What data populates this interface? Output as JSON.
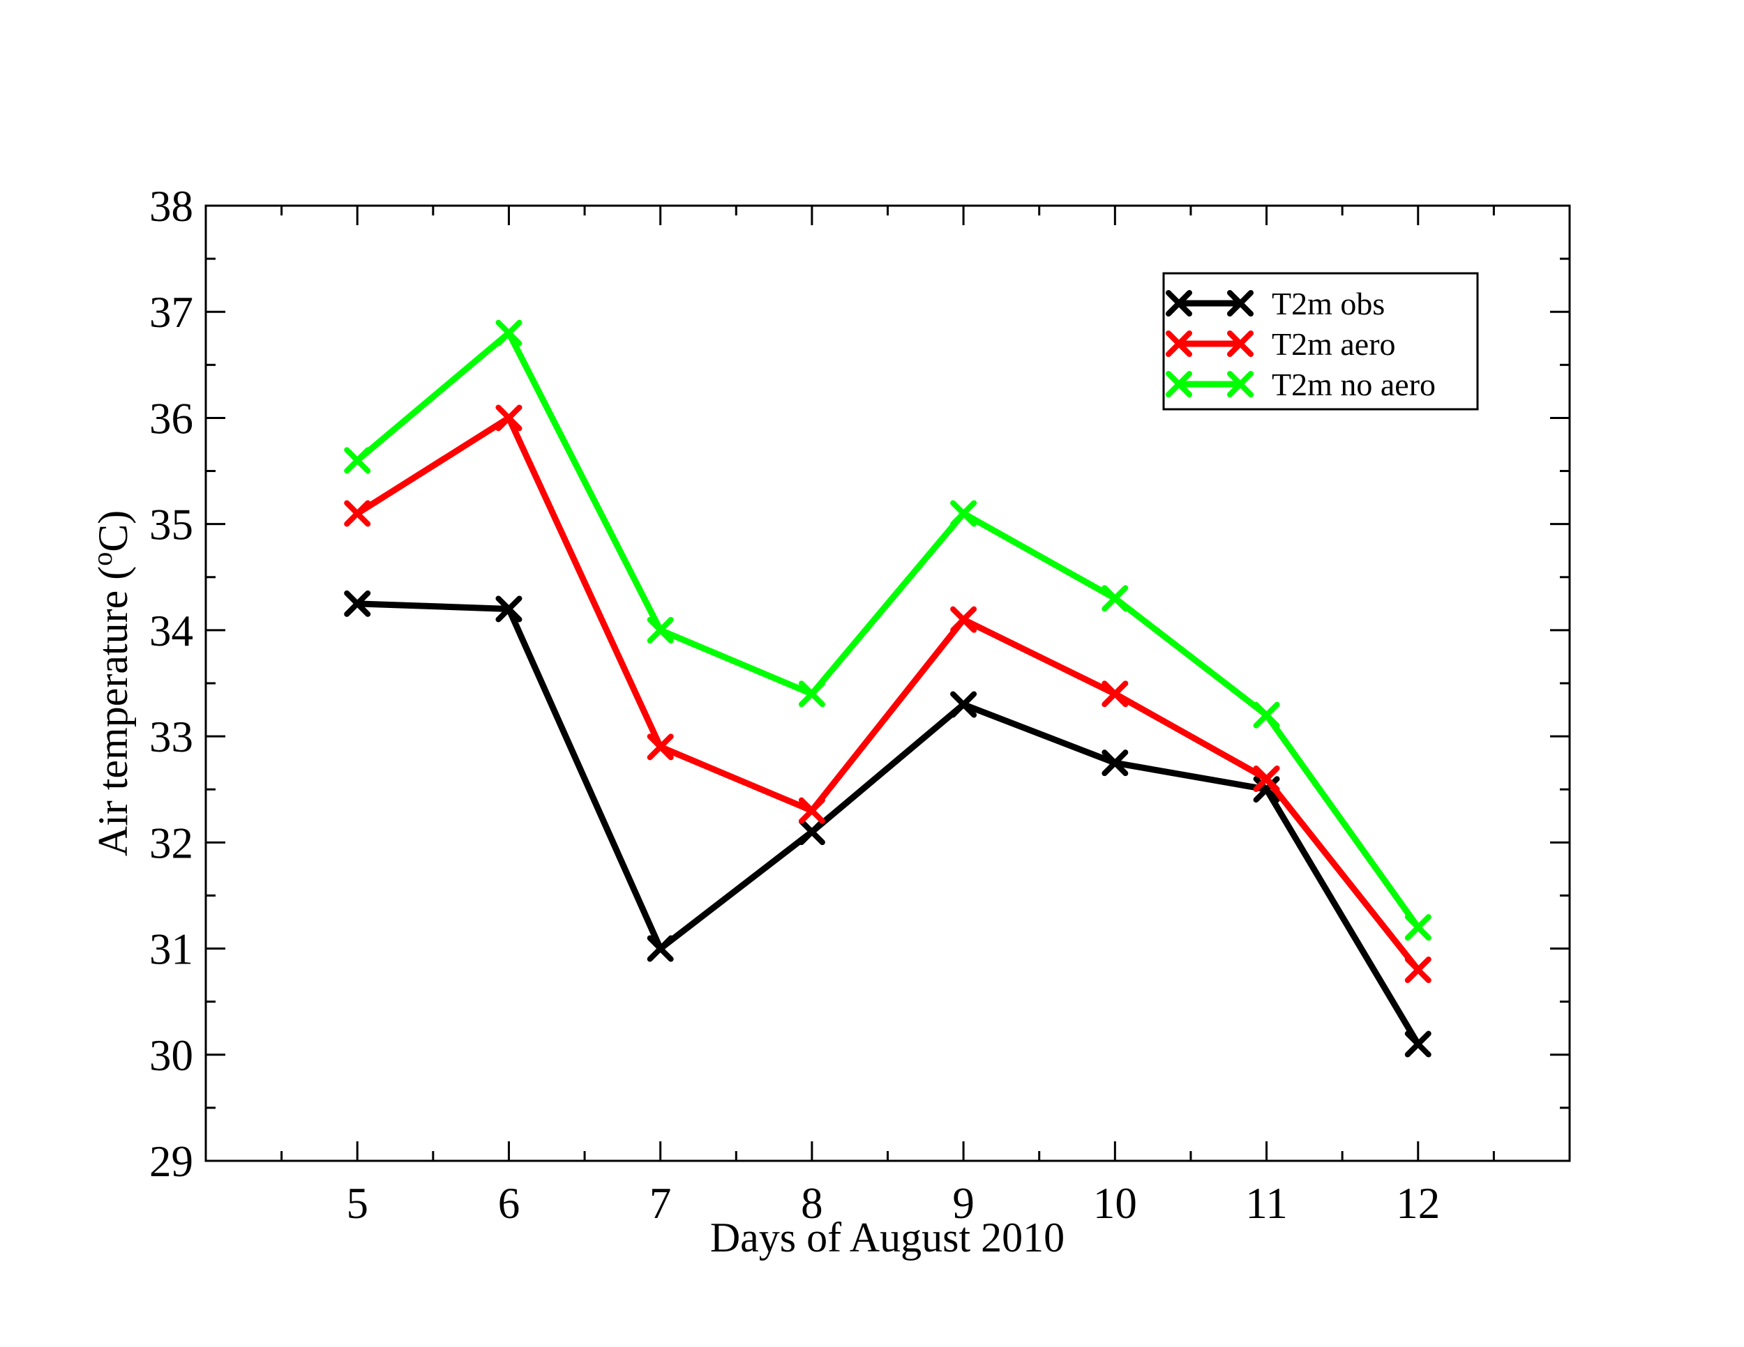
{
  "chart_data": {
    "type": "line",
    "title": "",
    "xlabel": "Days of August 2010",
    "ylabel": {
      "prefix": "Air temperature (",
      "superscript": "o",
      "suffix": "C)"
    },
    "x": [
      5,
      6,
      7,
      8,
      9,
      10,
      11,
      12
    ],
    "xlim": [
      4,
      13
    ],
    "ylim": [
      29,
      38
    ],
    "xticks": [
      5,
      6,
      7,
      8,
      9,
      10,
      11,
      12
    ],
    "yticks": [
      29,
      30,
      31,
      32,
      33,
      34,
      35,
      36,
      37,
      38
    ],
    "grid": false,
    "legend_position": "top-right",
    "series": [
      {
        "name": "T2m obs",
        "color": "#000000",
        "marker": "x",
        "values": [
          34.25,
          34.2,
          31.0,
          32.1,
          33.3,
          32.75,
          32.5,
          30.1
        ]
      },
      {
        "name": "T2m aero",
        "color": "#ff0000",
        "marker": "x",
        "values": [
          35.1,
          36.0,
          32.9,
          32.3,
          34.1,
          33.4,
          32.6,
          30.8
        ]
      },
      {
        "name": "T2m no aero",
        "color": "#00ff00",
        "marker": "x",
        "values": [
          35.6,
          36.8,
          34.0,
          33.4,
          35.1,
          34.3,
          33.2,
          31.2
        ]
      }
    ]
  }
}
